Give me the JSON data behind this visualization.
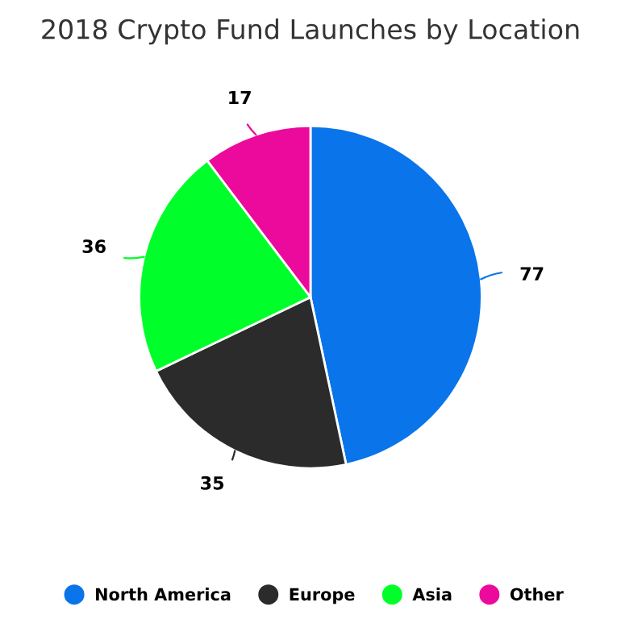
{
  "chart_data": {
    "type": "pie",
    "title": "2018 Crypto Fund Launches by Location",
    "categories": [
      "North America",
      "Europe",
      "Asia",
      "Other"
    ],
    "values": [
      77,
      35,
      36,
      17
    ],
    "colors": [
      "#0a74ea",
      "#2b2b2b",
      "#00ff2a",
      "#ec0a9c"
    ],
    "data_labels": true,
    "legend": "bottom"
  }
}
